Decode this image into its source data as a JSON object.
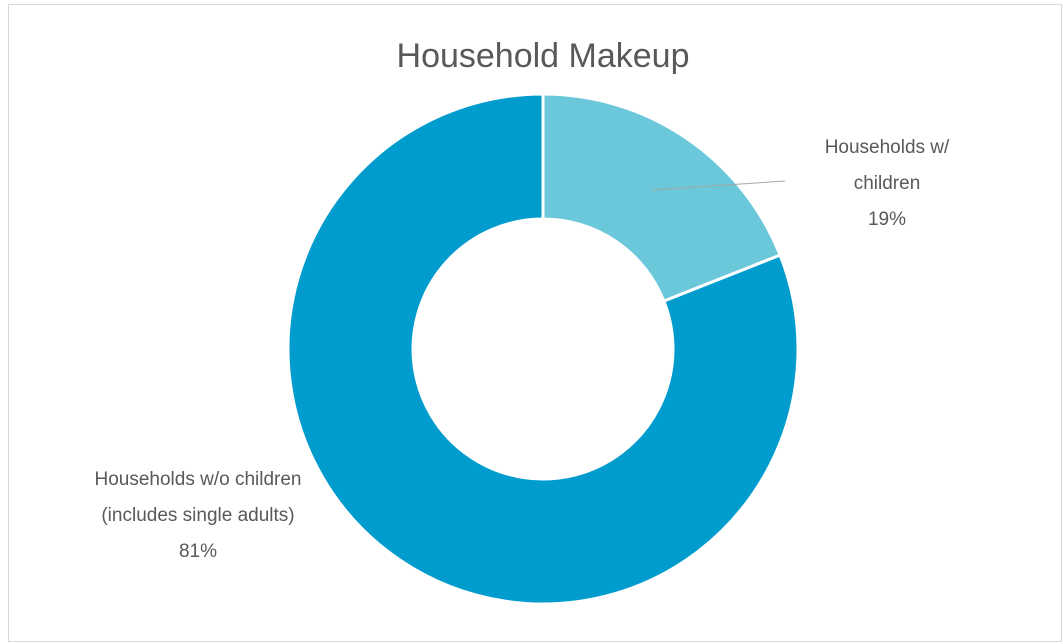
{
  "chart_data": {
    "type": "pie",
    "variant": "doughnut",
    "title": "Household Makeup",
    "categories": [
      "Households w/ children",
      "Households w/o children (includes single adults)"
    ],
    "values": [
      19,
      81
    ],
    "value_labels": [
      "19%",
      "81%"
    ],
    "label_lines": [
      [
        "Households w/",
        "children"
      ],
      [
        "Households w/o children",
        "(includes single adults)"
      ]
    ],
    "colors": [
      "#6BC8DA",
      "#009CCE"
    ],
    "legend": "none"
  }
}
